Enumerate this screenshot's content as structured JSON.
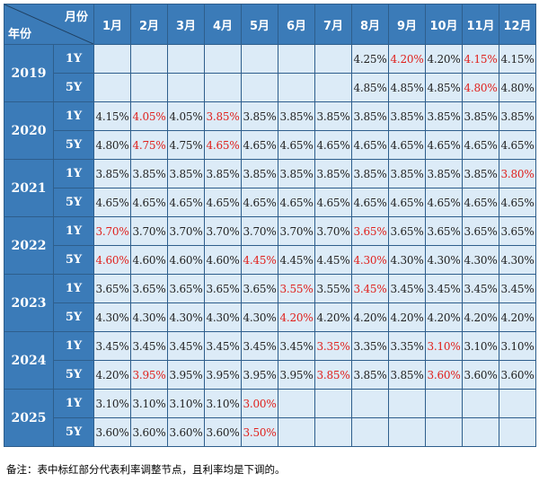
{
  "header": {
    "month_label": "月份",
    "year_label": "年份",
    "months": [
      "1月",
      "2月",
      "3月",
      "4月",
      "5月",
      "6月",
      "7月",
      "8月",
      "9月",
      "10月",
      "11月",
      "12月"
    ]
  },
  "rows": [
    {
      "year": "2019",
      "tenors": [
        {
          "tenor": "1Y",
          "cells": [
            {
              "v": "",
              "red": false
            },
            {
              "v": "",
              "red": false
            },
            {
              "v": "",
              "red": false
            },
            {
              "v": "",
              "red": false
            },
            {
              "v": "",
              "red": false
            },
            {
              "v": "",
              "red": false
            },
            {
              "v": "",
              "red": false
            },
            {
              "v": "4.25%",
              "red": false
            },
            {
              "v": "4.20%",
              "red": true
            },
            {
              "v": "4.20%",
              "red": false
            },
            {
              "v": "4.15%",
              "red": true
            },
            {
              "v": "4.15%",
              "red": false
            }
          ]
        },
        {
          "tenor": "5Y",
          "cells": [
            {
              "v": "",
              "red": false
            },
            {
              "v": "",
              "red": false
            },
            {
              "v": "",
              "red": false
            },
            {
              "v": "",
              "red": false
            },
            {
              "v": "",
              "red": false
            },
            {
              "v": "",
              "red": false
            },
            {
              "v": "",
              "red": false
            },
            {
              "v": "4.85%",
              "red": false
            },
            {
              "v": "4.85%",
              "red": false
            },
            {
              "v": "4.85%",
              "red": false
            },
            {
              "v": "4.80%",
              "red": true
            },
            {
              "v": "4.80%",
              "red": false
            }
          ]
        }
      ]
    },
    {
      "year": "2020",
      "tenors": [
        {
          "tenor": "1Y",
          "cells": [
            {
              "v": "4.15%",
              "red": false
            },
            {
              "v": "4.05%",
              "red": true
            },
            {
              "v": "4.05%",
              "red": false
            },
            {
              "v": "3.85%",
              "red": true
            },
            {
              "v": "3.85%",
              "red": false
            },
            {
              "v": "3.85%",
              "red": false
            },
            {
              "v": "3.85%",
              "red": false
            },
            {
              "v": "3.85%",
              "red": false
            },
            {
              "v": "3.85%",
              "red": false
            },
            {
              "v": "3.85%",
              "red": false
            },
            {
              "v": "3.85%",
              "red": false
            },
            {
              "v": "3.85%",
              "red": false
            }
          ]
        },
        {
          "tenor": "5Y",
          "cells": [
            {
              "v": "4.80%",
              "red": false
            },
            {
              "v": "4.75%",
              "red": true
            },
            {
              "v": "4.75%",
              "red": false
            },
            {
              "v": "4.65%",
              "red": true
            },
            {
              "v": "4.65%",
              "red": false
            },
            {
              "v": "4.65%",
              "red": false
            },
            {
              "v": "4.65%",
              "red": false
            },
            {
              "v": "4.65%",
              "red": false
            },
            {
              "v": "4.65%",
              "red": false
            },
            {
              "v": "4.65%",
              "red": false
            },
            {
              "v": "4.65%",
              "red": false
            },
            {
              "v": "4.65%",
              "red": false
            }
          ]
        }
      ]
    },
    {
      "year": "2021",
      "tenors": [
        {
          "tenor": "1Y",
          "cells": [
            {
              "v": "3.85%",
              "red": false
            },
            {
              "v": "3.85%",
              "red": false
            },
            {
              "v": "3.85%",
              "red": false
            },
            {
              "v": "3.85%",
              "red": false
            },
            {
              "v": "3.85%",
              "red": false
            },
            {
              "v": "3.85%",
              "red": false
            },
            {
              "v": "3.85%",
              "red": false
            },
            {
              "v": "3.85%",
              "red": false
            },
            {
              "v": "3.85%",
              "red": false
            },
            {
              "v": "3.85%",
              "red": false
            },
            {
              "v": "3.85%",
              "red": false
            },
            {
              "v": "3.80%",
              "red": true
            }
          ]
        },
        {
          "tenor": "5Y",
          "cells": [
            {
              "v": "4.65%",
              "red": false
            },
            {
              "v": "4.65%",
              "red": false
            },
            {
              "v": "4.65%",
              "red": false
            },
            {
              "v": "4.65%",
              "red": false
            },
            {
              "v": "4.65%",
              "red": false
            },
            {
              "v": "4.65%",
              "red": false
            },
            {
              "v": "4.65%",
              "red": false
            },
            {
              "v": "4.65%",
              "red": false
            },
            {
              "v": "4.65%",
              "red": false
            },
            {
              "v": "4.65%",
              "red": false
            },
            {
              "v": "4.65%",
              "red": false
            },
            {
              "v": "4.65%",
              "red": false
            }
          ]
        }
      ]
    },
    {
      "year": "2022",
      "tenors": [
        {
          "tenor": "1Y",
          "cells": [
            {
              "v": "3.70%",
              "red": true
            },
            {
              "v": "3.70%",
              "red": false
            },
            {
              "v": "3.70%",
              "red": false
            },
            {
              "v": "3.70%",
              "red": false
            },
            {
              "v": "3.70%",
              "red": false
            },
            {
              "v": "3.70%",
              "red": false
            },
            {
              "v": "3.70%",
              "red": false
            },
            {
              "v": "3.65%",
              "red": true
            },
            {
              "v": "3.65%",
              "red": false
            },
            {
              "v": "3.65%",
              "red": false
            },
            {
              "v": "3.65%",
              "red": false
            },
            {
              "v": "3.65%",
              "red": false
            }
          ]
        },
        {
          "tenor": "5Y",
          "cells": [
            {
              "v": "4.60%",
              "red": true
            },
            {
              "v": "4.60%",
              "red": false
            },
            {
              "v": "4.60%",
              "red": false
            },
            {
              "v": "4.60%",
              "red": false
            },
            {
              "v": "4.45%",
              "red": true
            },
            {
              "v": "4.45%",
              "red": false
            },
            {
              "v": "4.45%",
              "red": false
            },
            {
              "v": "4.30%",
              "red": true
            },
            {
              "v": "4.30%",
              "red": false
            },
            {
              "v": "4.30%",
              "red": false
            },
            {
              "v": "4.30%",
              "red": false
            },
            {
              "v": "4.30%",
              "red": false
            }
          ]
        }
      ]
    },
    {
      "year": "2023",
      "tenors": [
        {
          "tenor": "1Y",
          "cells": [
            {
              "v": "3.65%",
              "red": false
            },
            {
              "v": "3.65%",
              "red": false
            },
            {
              "v": "3.65%",
              "red": false
            },
            {
              "v": "3.65%",
              "red": false
            },
            {
              "v": "3.65%",
              "red": false
            },
            {
              "v": "3.55%",
              "red": true
            },
            {
              "v": "3.55%",
              "red": false
            },
            {
              "v": "3.45%",
              "red": true
            },
            {
              "v": "3.45%",
              "red": false
            },
            {
              "v": "3.45%",
              "red": false
            },
            {
              "v": "3.45%",
              "red": false
            },
            {
              "v": "3.45%",
              "red": false
            }
          ]
        },
        {
          "tenor": "5Y",
          "cells": [
            {
              "v": "4.30%",
              "red": false
            },
            {
              "v": "4.30%",
              "red": false
            },
            {
              "v": "4.30%",
              "red": false
            },
            {
              "v": "4.30%",
              "red": false
            },
            {
              "v": "4.30%",
              "red": false
            },
            {
              "v": "4.20%",
              "red": true
            },
            {
              "v": "4.20%",
              "red": false
            },
            {
              "v": "4.20%",
              "red": false
            },
            {
              "v": "4.20%",
              "red": false
            },
            {
              "v": "4.20%",
              "red": false
            },
            {
              "v": "4.20%",
              "red": false
            },
            {
              "v": "4.20%",
              "red": false
            }
          ]
        }
      ]
    },
    {
      "year": "2024",
      "tenors": [
        {
          "tenor": "1Y",
          "cells": [
            {
              "v": "3.45%",
              "red": false
            },
            {
              "v": "3.45%",
              "red": false
            },
            {
              "v": "3.45%",
              "red": false
            },
            {
              "v": "3.45%",
              "red": false
            },
            {
              "v": "3.45%",
              "red": false
            },
            {
              "v": "3.45%",
              "red": false
            },
            {
              "v": "3.35%",
              "red": true
            },
            {
              "v": "3.35%",
              "red": false
            },
            {
              "v": "3.35%",
              "red": false
            },
            {
              "v": "3.10%",
              "red": true
            },
            {
              "v": "3.10%",
              "red": false
            },
            {
              "v": "3.10%",
              "red": false
            }
          ]
        },
        {
          "tenor": "5Y",
          "cells": [
            {
              "v": "4.20%",
              "red": false
            },
            {
              "v": "3.95%",
              "red": true
            },
            {
              "v": "3.95%",
              "red": false
            },
            {
              "v": "3.95%",
              "red": false
            },
            {
              "v": "3.95%",
              "red": false
            },
            {
              "v": "3.95%",
              "red": false
            },
            {
              "v": "3.85%",
              "red": true
            },
            {
              "v": "3.85%",
              "red": false
            },
            {
              "v": "3.85%",
              "red": false
            },
            {
              "v": "3.60%",
              "red": true
            },
            {
              "v": "3.60%",
              "red": false
            },
            {
              "v": "3.60%",
              "red": false
            }
          ]
        }
      ]
    },
    {
      "year": "2025",
      "tenors": [
        {
          "tenor": "1Y",
          "cells": [
            {
              "v": "3.10%",
              "red": false
            },
            {
              "v": "3.10%",
              "red": false
            },
            {
              "v": "3.10%",
              "red": false
            },
            {
              "v": "3.10%",
              "red": false
            },
            {
              "v": "3.00%",
              "red": true
            },
            {
              "v": "",
              "red": false
            },
            {
              "v": "",
              "red": false
            },
            {
              "v": "",
              "red": false
            },
            {
              "v": "",
              "red": false
            },
            {
              "v": "",
              "red": false
            },
            {
              "v": "",
              "red": false
            },
            {
              "v": "",
              "red": false
            }
          ]
        },
        {
          "tenor": "5Y",
          "cells": [
            {
              "v": "3.60%",
              "red": false
            },
            {
              "v": "3.60%",
              "red": false
            },
            {
              "v": "3.60%",
              "red": false
            },
            {
              "v": "3.60%",
              "red": false
            },
            {
              "v": "3.50%",
              "red": true
            },
            {
              "v": "",
              "red": false
            },
            {
              "v": "",
              "red": false
            },
            {
              "v": "",
              "red": false
            },
            {
              "v": "",
              "red": false
            },
            {
              "v": "",
              "red": false
            },
            {
              "v": "",
              "red": false
            },
            {
              "v": "",
              "red": false
            }
          ]
        }
      ]
    }
  ],
  "colors": {
    "header_bg": "#3b7bb8",
    "cell_bg": "#dcebf7",
    "highlight": "#e0211d",
    "border": "#2e5e8c"
  },
  "note": "备注：表中标红部分代表利率调整节点，且利率均是下调的。"
}
